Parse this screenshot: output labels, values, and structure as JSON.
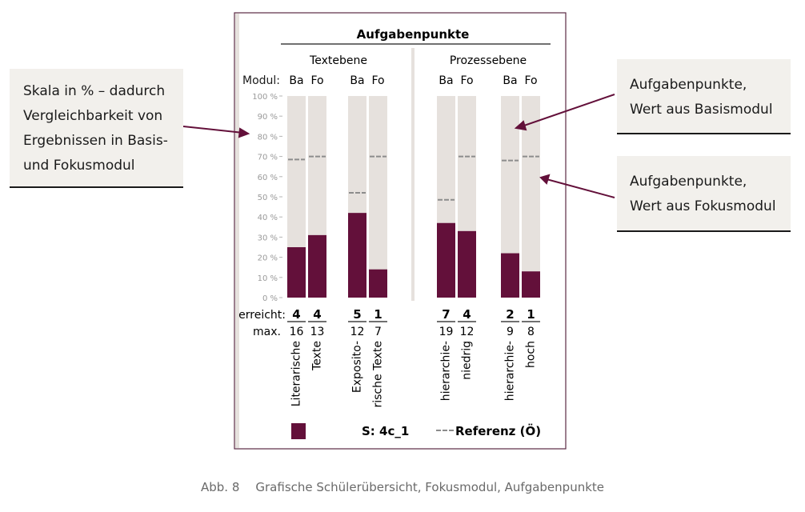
{
  "chart_data": {
    "type": "bar",
    "title": "Aufgabenpunkte",
    "y_axis_label": "Modul:",
    "ylim": [
      0,
      100
    ],
    "y_ticks": [
      "0 %",
      "10 %",
      "20 %",
      "30 %",
      "40 %",
      "50 %",
      "60 %",
      "70 %",
      "80 %",
      "90 %",
      "100 %"
    ],
    "groups": [
      {
        "label": "Textebene",
        "categories": [
          "Literarische Texte",
          "Exposito-rische Texte"
        ]
      },
      {
        "label": "Prozessebene",
        "categories": [
          "hierarchie-niedrig",
          "hierarchie-hoch"
        ]
      }
    ],
    "categories": [
      {
        "label_lines": [
          "Literarische",
          "Texte"
        ],
        "bars": [
          {
            "mod": "Ba",
            "value": 25,
            "ref": 68.5,
            "erreicht": "4",
            "max": "16"
          },
          {
            "mod": "Fo",
            "value": 31,
            "ref": 70,
            "erreicht": "4",
            "max": "13"
          }
        ]
      },
      {
        "label_lines": [
          "Exposito-",
          "rische Texte"
        ],
        "bars": [
          {
            "mod": "Ba",
            "value": 42,
            "ref": 52,
            "erreicht": "5",
            "max": "12"
          },
          {
            "mod": "Fo",
            "value": 14,
            "ref": 70,
            "erreicht": "1",
            "max": "7"
          }
        ]
      },
      {
        "label_lines": [
          "hierarchie-",
          "niedrig"
        ],
        "bars": [
          {
            "mod": "Ba",
            "value": 37,
            "ref": 48.5,
            "erreicht": "7",
            "max": "19"
          },
          {
            "mod": "Fo",
            "value": 33,
            "ref": 70,
            "erreicht": "4",
            "max": "12"
          }
        ]
      },
      {
        "label_lines": [
          "hierarchie-",
          "hoch"
        ],
        "bars": [
          {
            "mod": "Ba",
            "value": 22,
            "ref": 68,
            "erreicht": "2",
            "max": "9"
          },
          {
            "mod": "Fo",
            "value": 13,
            "ref": 70,
            "erreicht": "1",
            "max": "8"
          }
        ]
      }
    ],
    "row_labels": {
      "erreicht": "erreicht:",
      "max": "max."
    },
    "legend": {
      "series_label": "S: 4c_1",
      "reference_label": "Referenz (Ö)"
    },
    "colors": {
      "bar": "#63103a",
      "background_bar": "#e6e1dd",
      "reference": "#8c8c8c",
      "frame": "#5a2a44"
    }
  },
  "callouts": {
    "scale": [
      "Skala in % – dadurch",
      "Vergleichbarkeit  von",
      "Ergebnissen in Basis-",
      "und Fokusmodul"
    ],
    "basis": [
      "Aufgabenpunkte,",
      "Wert aus Basismodul"
    ],
    "fokus": [
      "Aufgabenpunkte,",
      "Wert aus Fokusmodul"
    ]
  },
  "caption": {
    "number": "Abb. 8",
    "text": "Grafische Schülerübersicht, Fokusmodul, Aufgabenpunkte"
  }
}
